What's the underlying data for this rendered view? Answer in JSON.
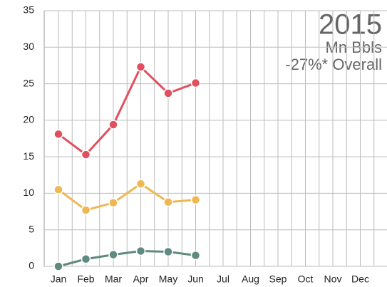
{
  "chart_data": {
    "type": "line",
    "annotations": [
      "2015",
      "Mn Bbls",
      "-27%* Overall"
    ],
    "categories": [
      "Jan",
      "Feb",
      "Mar",
      "Apr",
      "May",
      "Jun",
      "Jul",
      "Aug",
      "Sep",
      "Oct",
      "Nov",
      "Dec"
    ],
    "series": [
      {
        "color": "#e0505f",
        "values": [
          18.1,
          15.3,
          19.4,
          27.3,
          23.7,
          25.1,
          null,
          null,
          null,
          null,
          null,
          null
        ]
      },
      {
        "color": "#efb752",
        "values": [
          10.5,
          7.7,
          8.7,
          11.3,
          8.8,
          9.1,
          null,
          null,
          null,
          null,
          null,
          null
        ]
      },
      {
        "color": "#5e8a7f",
        "values": [
          0,
          1.0,
          1.6,
          2.1,
          2.0,
          1.5,
          null,
          null,
          null,
          null,
          null,
          null
        ]
      }
    ],
    "ylim": [
      0,
      35
    ],
    "yticks": [
      0,
      5,
      10,
      15,
      20,
      25,
      30,
      35
    ],
    "grid": true
  }
}
